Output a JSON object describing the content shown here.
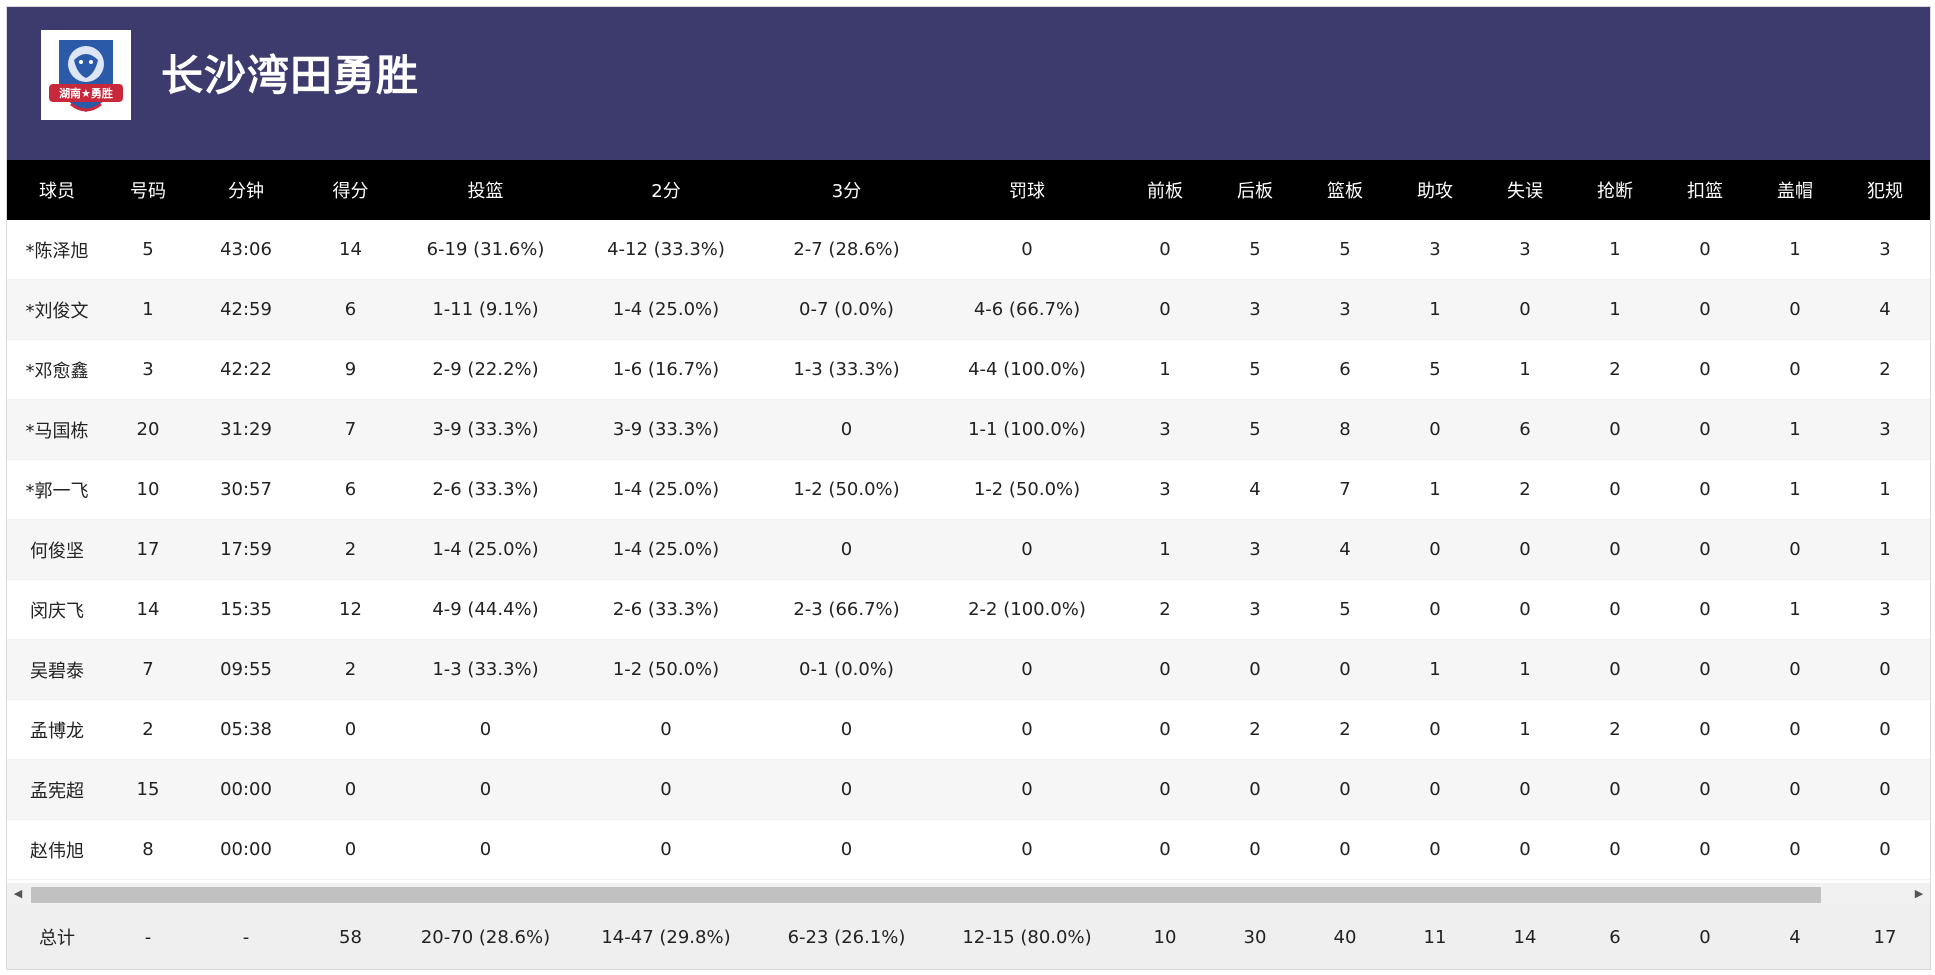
{
  "team": {
    "name": "长沙湾田勇胜",
    "logo_text": "湖南★勇胜",
    "colors": {
      "header_bg": "#3d3a6e",
      "logo_red": "#c8283a",
      "logo_blue": "#2a5aa8"
    }
  },
  "columns": [
    "球员",
    "号码",
    "分钟",
    "得分",
    "投篮",
    "2分",
    "3分",
    "罚球",
    "前板",
    "后板",
    "篮板",
    "助攻",
    "失误",
    "抢断",
    "扣篮",
    "盖帽",
    "犯规"
  ],
  "players": [
    [
      "*陈泽旭",
      "5",
      "43:06",
      "14",
      "6-19 (31.6%)",
      "4-12 (33.3%)",
      "2-7 (28.6%)",
      "0",
      "0",
      "5",
      "5",
      "3",
      "3",
      "1",
      "0",
      "1",
      "3"
    ],
    [
      "*刘俊文",
      "1",
      "42:59",
      "6",
      "1-11 (9.1%)",
      "1-4 (25.0%)",
      "0-7 (0.0%)",
      "4-6 (66.7%)",
      "0",
      "3",
      "3",
      "1",
      "0",
      "1",
      "0",
      "0",
      "4"
    ],
    [
      "*邓愈鑫",
      "3",
      "42:22",
      "9",
      "2-9 (22.2%)",
      "1-6 (16.7%)",
      "1-3 (33.3%)",
      "4-4 (100.0%)",
      "1",
      "5",
      "6",
      "5",
      "1",
      "2",
      "0",
      "0",
      "2"
    ],
    [
      "*马国栋",
      "20",
      "31:29",
      "7",
      "3-9 (33.3%)",
      "3-9 (33.3%)",
      "0",
      "1-1 (100.0%)",
      "3",
      "5",
      "8",
      "0",
      "6",
      "0",
      "0",
      "1",
      "3"
    ],
    [
      "*郭一飞",
      "10",
      "30:57",
      "6",
      "2-6 (33.3%)",
      "1-4 (25.0%)",
      "1-2 (50.0%)",
      "1-2 (50.0%)",
      "3",
      "4",
      "7",
      "1",
      "2",
      "0",
      "0",
      "1",
      "1"
    ],
    [
      "何俊坚",
      "17",
      "17:59",
      "2",
      "1-4 (25.0%)",
      "1-4 (25.0%)",
      "0",
      "0",
      "1",
      "3",
      "4",
      "0",
      "0",
      "0",
      "0",
      "0",
      "1"
    ],
    [
      "闵庆飞",
      "14",
      "15:35",
      "12",
      "4-9 (44.4%)",
      "2-6 (33.3%)",
      "2-3 (66.7%)",
      "2-2 (100.0%)",
      "2",
      "3",
      "5",
      "0",
      "0",
      "0",
      "0",
      "1",
      "3"
    ],
    [
      "吴碧泰",
      "7",
      "09:55",
      "2",
      "1-3 (33.3%)",
      "1-2 (50.0%)",
      "0-1 (0.0%)",
      "0",
      "0",
      "0",
      "0",
      "1",
      "1",
      "0",
      "0",
      "0",
      "0"
    ],
    [
      "孟博龙",
      "2",
      "05:38",
      "0",
      "0",
      "0",
      "0",
      "0",
      "0",
      "2",
      "2",
      "0",
      "1",
      "2",
      "0",
      "0",
      "0"
    ],
    [
      "孟宪超",
      "15",
      "00:00",
      "0",
      "0",
      "0",
      "0",
      "0",
      "0",
      "0",
      "0",
      "0",
      "0",
      "0",
      "0",
      "0",
      "0"
    ],
    [
      "赵伟旭",
      "8",
      "00:00",
      "0",
      "0",
      "0",
      "0",
      "0",
      "0",
      "0",
      "0",
      "0",
      "0",
      "0",
      "0",
      "0",
      "0"
    ]
  ],
  "totals": [
    "总计",
    "-",
    "-",
    "58",
    "20-70 (28.6%)",
    "14-47 (29.8%)",
    "6-23 (26.1%)",
    "12-15 (80.0%)",
    "10",
    "30",
    "40",
    "11",
    "14",
    "6",
    "0",
    "4",
    "17"
  ],
  "scroll": {
    "left_icon": "arrow-left-icon",
    "right_icon": "arrow-right-icon"
  }
}
